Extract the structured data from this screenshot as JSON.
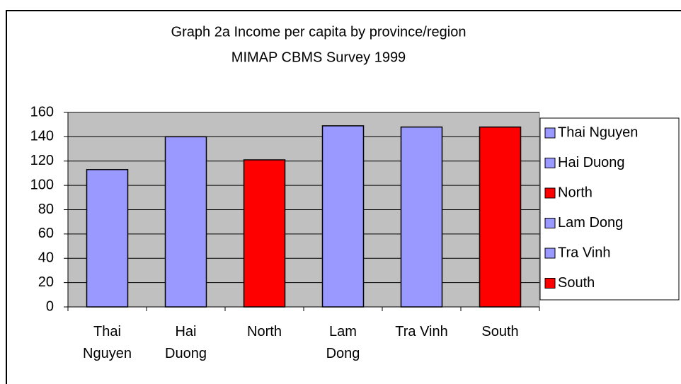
{
  "chart_data": {
    "type": "bar",
    "title": "Graph 2a Income per capita by province/region",
    "subtitle": "MIMAP CBMS Survey 1999",
    "categories": [
      "Thai Nguyen",
      "Hai Duong",
      "North",
      "Lam Dong",
      "Tra Vinh",
      "South"
    ],
    "values": [
      113,
      140,
      121,
      149,
      148,
      148
    ],
    "colors": [
      "#9999ff",
      "#9999ff",
      "#ff0000",
      "#9999ff",
      "#9999ff",
      "#ff0000"
    ],
    "ylim": [
      0,
      160
    ],
    "yticks": [
      0,
      20,
      40,
      60,
      80,
      100,
      120,
      140,
      160
    ],
    "grid": true,
    "legend": "right"
  }
}
